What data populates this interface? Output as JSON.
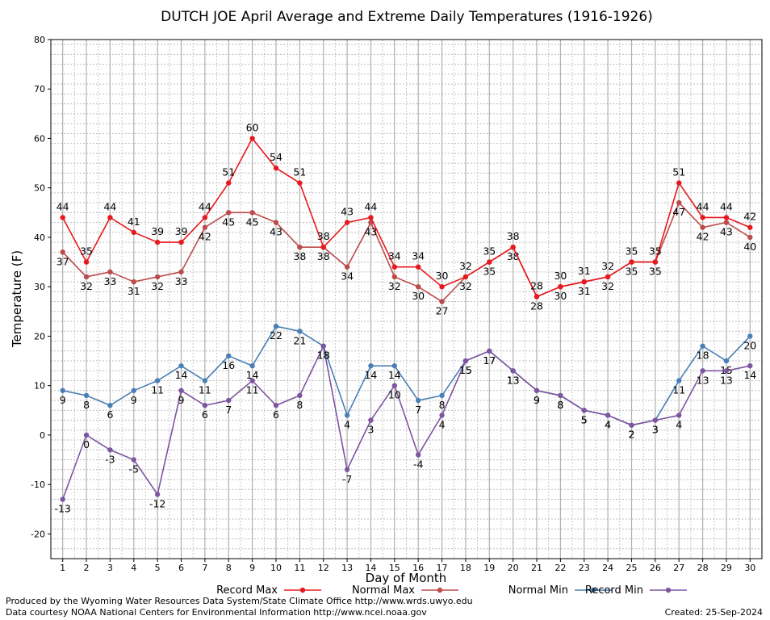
{
  "chart_data": {
    "type": "line",
    "title": "DUTCH JOE April Average and Extreme Daily Temperatures (1916-1926)",
    "xlabel": "Day of Month",
    "ylabel": "Temperature (F)",
    "ylim": [
      -25,
      80
    ],
    "yticks": [
      "-20",
      "-10",
      "0",
      "10",
      "20",
      "30",
      "40",
      "50",
      "60",
      "70",
      "80"
    ],
    "x": [
      "1",
      "2",
      "3",
      "4",
      "5",
      "6",
      "7",
      "8",
      "9",
      "10",
      "11",
      "12",
      "13",
      "14",
      "15",
      "16",
      "17",
      "18",
      "19",
      "20",
      "21",
      "22",
      "23",
      "24",
      "25",
      "26",
      "27",
      "28",
      "29",
      "30"
    ],
    "grid": true,
    "legend_placement": "bottom",
    "series": [
      {
        "name": "Record Max",
        "color": "#e8191e",
        "label_pos": "above",
        "values": [
          44,
          35,
          44,
          41,
          39,
          39,
          44,
          51,
          60,
          54,
          51,
          38,
          43,
          44,
          34,
          34,
          30,
          32,
          35,
          38,
          28,
          30,
          31,
          32,
          35,
          35,
          51,
          44,
          44,
          42
        ]
      },
      {
        "name": "Normal Max",
        "color": "#bc4b4b",
        "label_pos": "below",
        "values": [
          37,
          32,
          33,
          31,
          32,
          33,
          42,
          45,
          45,
          43,
          38,
          38,
          34,
          43,
          32,
          30,
          27,
          32,
          35,
          38,
          28,
          30,
          31,
          32,
          35,
          35,
          47,
          42,
          43,
          40
        ]
      },
      {
        "name": "Normal Min",
        "color": "#4a7fb5",
        "label_pos": "below",
        "values": [
          9,
          8,
          6,
          9,
          11,
          14,
          11,
          16,
          14,
          22,
          21,
          18,
          4,
          14,
          14,
          7,
          8,
          15,
          17,
          13,
          9,
          8,
          5,
          4,
          2,
          3,
          11,
          18,
          15,
          20
        ]
      },
      {
        "name": "Record Min",
        "color": "#7d55a0",
        "label_pos": "below",
        "values": [
          -13,
          0,
          -3,
          -5,
          -12,
          9,
          6,
          7,
          11,
          6,
          8,
          18,
          -7,
          3,
          10,
          -4,
          4,
          15,
          17,
          13,
          9,
          8,
          5,
          4,
          2,
          3,
          4,
          13,
          13,
          14
        ]
      }
    ]
  },
  "footer": {
    "produced_by": "Produced by the Wyoming Water Resources Data System/State Climate Office http://www.wrds.uwyo.edu",
    "courtesy": "Data courtesy NOAA National Centers for Environmental Information http://www.ncei.noaa.gov",
    "created": "Created:  25-Sep-2024"
  }
}
